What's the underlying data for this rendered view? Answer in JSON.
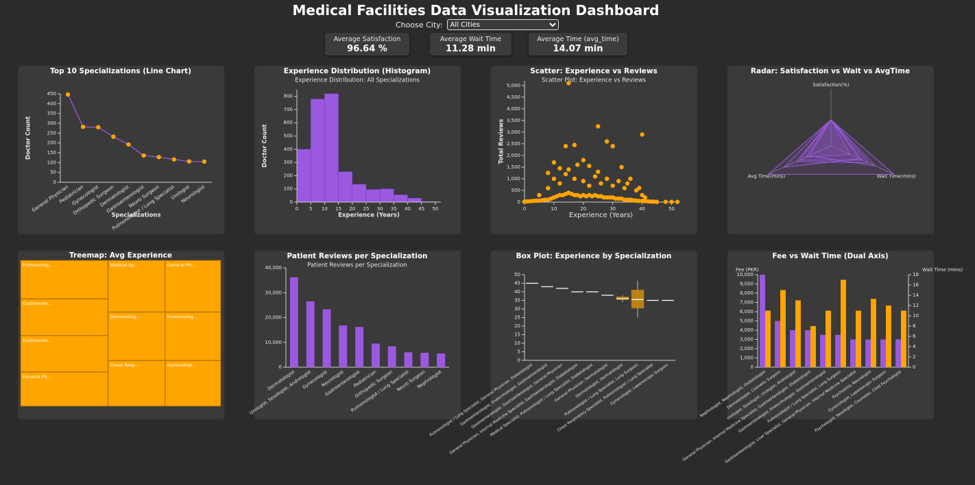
{
  "header": {
    "title": "Medical Facilities Data Visualization Dashboard",
    "city_label": "Choose City:",
    "city_selected": "All Cities"
  },
  "stats": [
    {
      "label": "Average Satisfaction",
      "value": "96.64 %"
    },
    {
      "label": "Average Wait Time",
      "value": "11.28 min"
    },
    {
      "label": "Average Time (avg_time)",
      "value": "14.07 min"
    }
  ],
  "chart_data": [
    {
      "type": "line",
      "title": "Top 10 Specializations (Line Chart)",
      "x_label": "Specializations",
      "y_label": "Doctor Count",
      "categories": [
        "General Physician",
        "Pediatrician",
        "Gynecologist",
        "Orthopedic Surgeon",
        "Dermatologist",
        "Gastroenterologist",
        "Neuro Surgeon",
        "Pulmonologist / Lung Specialist",
        "Urologist",
        "Neurologist"
      ],
      "values": [
        447,
        282,
        280,
        232,
        192,
        136,
        128,
        116,
        106,
        105
      ],
      "line_color": "#9b59e0",
      "marker_color": "#ffa500",
      "ylim": [
        0,
        450
      ],
      "yticks": [
        0,
        50,
        100,
        150,
        200,
        250,
        300,
        350,
        400,
        450
      ]
    },
    {
      "type": "histogram",
      "title": "Experience Distribution (Histogram)",
      "subtitle": "Experience Distribution: All Specializations",
      "x_label": "Experience (Years)",
      "y_label": "Doctor Count",
      "bins": [
        0,
        5,
        10,
        15,
        20,
        25,
        30,
        35,
        40,
        45,
        50
      ],
      "values": [
        400,
        780,
        820,
        230,
        135,
        95,
        100,
        55,
        30,
        5
      ],
      "color": "#9b59e0",
      "xlim": [
        0,
        52
      ],
      "xticks": [
        0,
        5,
        10,
        15,
        20,
        25,
        30,
        35,
        40,
        45,
        50
      ],
      "ylim": [
        0,
        850
      ],
      "yticks": [
        0,
        100,
        200,
        300,
        400,
        500,
        600,
        700,
        800
      ]
    },
    {
      "type": "scatter",
      "title": "Scatter: Experience vs Reviews",
      "subtitle": "Scatter Plot: Experience vs Reviews",
      "x_label": "Experience (Years)",
      "y_label": "Total Reviews",
      "color": "#ffa500",
      "x": [
        0,
        1,
        2,
        3,
        4,
        5,
        6,
        7,
        8,
        9,
        10,
        11,
        12,
        13,
        14,
        15,
        16,
        17,
        18,
        19,
        20,
        21,
        22,
        23,
        24,
        25,
        26,
        27,
        28,
        29,
        30,
        31,
        32,
        33,
        34,
        35,
        36,
        37,
        38,
        39,
        40,
        41,
        42,
        43,
        44,
        45,
        48,
        50,
        52,
        5,
        8,
        10,
        12,
        14,
        15,
        17,
        18,
        20,
        22,
        24,
        25,
        26,
        28,
        30,
        32,
        34,
        35,
        38,
        39,
        40,
        41,
        15,
        25,
        40,
        17,
        28,
        14,
        30,
        10,
        20,
        33,
        12,
        22,
        8,
        36
      ],
      "y": [
        20,
        30,
        40,
        50,
        60,
        60,
        80,
        100,
        100,
        150,
        200,
        250,
        300,
        300,
        350,
        400,
        350,
        300,
        300,
        250,
        300,
        250,
        300,
        250,
        300,
        250,
        250,
        200,
        200,
        200,
        200,
        150,
        150,
        150,
        100,
        100,
        100,
        80,
        60,
        50,
        50,
        40,
        30,
        20,
        20,
        10,
        10,
        10,
        10,
        300,
        600,
        1000,
        800,
        1200,
        1400,
        1000,
        1600,
        900,
        700,
        1100,
        1300,
        800,
        1000,
        700,
        900,
        600,
        800,
        500,
        600,
        300,
        200,
        5100,
        3250,
        2900,
        2450,
        2600,
        2400,
        2400,
        1700,
        1800,
        1500,
        1450,
        1550,
        1250,
        1000
      ],
      "xlim": [
        0,
        52
      ],
      "xticks": [
        0,
        10,
        20,
        30,
        40,
        50
      ],
      "ylim": [
        0,
        5200
      ],
      "yticks": [
        0,
        500,
        {
          "value": 1000,
          "label": "1,000"
        },
        {
          "value": 1500,
          "label": "1,500"
        },
        {
          "value": 2000,
          "label": "2,000"
        },
        {
          "value": 2500,
          "label": "2,500"
        },
        {
          "value": 3000,
          "label": "3,000"
        },
        {
          "value": 3500,
          "label": "3,500"
        },
        {
          "value": 4000,
          "label": "4,000"
        },
        {
          "value": 4500,
          "label": "4,500"
        },
        {
          "value": 5000,
          "label": "5,000"
        }
      ]
    },
    {
      "type": "radar",
      "title": "Radar: Satisfaction vs Wait vs AvgTime",
      "axes": [
        "Satisfaction(%)",
        "Wait Time(mins)",
        "Avg Time(mins)"
      ],
      "rlim": [
        0,
        1
      ],
      "series": [
        {
          "color": "#9b59e0",
          "values": [
            0.46,
            1,
            1
          ]
        },
        {
          "color": "#9b59e0",
          "values": [
            0.46,
            0.6,
            0.55
          ]
        },
        {
          "color": "#9b59e0",
          "values": [
            0.46,
            0.45,
            0.75
          ]
        },
        {
          "color": "#9b59e0",
          "values": [
            0.46,
            0.3,
            0.4
          ]
        },
        {
          "color": "#9b59e0",
          "values": [
            0.46,
            0.7,
            0.35
          ]
        },
        {
          "color": "#9b59e0",
          "values": [
            0.46,
            0.5,
            0.5
          ]
        }
      ]
    },
    {
      "type": "treemap",
      "title": "Treemap: Avg Experience",
      "color": "#ffa500",
      "labels": [
        "Pulmonolog...",
        "Gastroente...",
        "Gastroente...",
        "General Ph...",
        "Medical Sp...",
        "General Ph...",
        "Dermatolog...",
        "Pulmonolog...",
        "Chest Resp...",
        "Gynecologi..."
      ],
      "values": [
        45,
        43,
        42.5,
        40,
        39.5,
        38.5,
        37,
        36,
        35,
        34
      ]
    },
    {
      "type": "bar",
      "title": "Patient Reviews per Specialization",
      "subtitle": "Patient Reviews per Specialization",
      "categories": [
        "Dermatologist",
        "Urologist, Sexologist, Andrologist",
        "Gynecologist",
        "Neurologist",
        "Gastroenterologist",
        "Pediatrician",
        "Orthopedic Surgeon",
        "Pulmonologist / Lung Specialist",
        "Neuro Surgeon",
        "Nephrologist"
      ],
      "values": [
        36200,
        26500,
        23300,
        16800,
        16200,
        9500,
        8400,
        6000,
        5800,
        5500
      ],
      "color": "#9b59e0",
      "ylim": [
        0,
        40000
      ],
      "yticks": [
        0,
        {
          "value": 10000,
          "label": "10,000"
        },
        {
          "value": 20000,
          "label": "20,000"
        },
        {
          "value": 30000,
          "label": "30,000"
        },
        {
          "value": 40000,
          "label": "40,000"
        }
      ]
    },
    {
      "type": "box",
      "title": "Box Plot: Experience by Specialization",
      "color": "#c98a12",
      "median_color": "#ffffff",
      "categories": [
        "Pulmonologist / Lung Specialist, General Physician, Diabetologist",
        "Gastroenterologist, Endocrinologist, Gastroenterologist",
        "Gastroenterologist, Gastroenterologist, General Physician",
        "General Physician, Internal Medicine Specialist, Gastroenterologist, Diabetologist",
        "Medical Specialist, Pulmonologist / Lung Specialist, Diabetologist",
        "General Physician, Dermatologist",
        "Dermatologist, Dermatologist",
        "Pulmonologist / Lung Specialist, Lung Surgeon",
        "Chest Respiratory Specialist, Pulmonologist / Lung Specialist",
        "Gynecologist, Laparoscopic Surgeon"
      ],
      "min": [
        45,
        43,
        42,
        40,
        40,
        38,
        34,
        25,
        35,
        35
      ],
      "q1": [
        45,
        43,
        42,
        40,
        40,
        38,
        35.5,
        30.5,
        35,
        35
      ],
      "median": [
        45,
        43,
        42,
        40,
        40,
        38,
        36,
        35.5,
        35,
        35
      ],
      "q3": [
        45,
        43,
        42,
        40,
        40,
        38,
        37,
        41,
        35,
        35
      ],
      "max": [
        45,
        43,
        42,
        40,
        40,
        38,
        38,
        46.5,
        35,
        35
      ],
      "ylim": [
        0,
        50
      ],
      "yticks": [
        0,
        5,
        10,
        15,
        20,
        25,
        30,
        35,
        40,
        45,
        50
      ]
    },
    {
      "type": "bar",
      "title": "Fee vs Wait Time (Dual Axis)",
      "y_label": "Fee (PKR)",
      "y2_label": "Wait Time (mins)",
      "categories": [
        "Nephrologist, Nephrologist, Diabetologist",
        "Dermatologist, Cosmetic Surgeon",
        "Urologist, Sexologist, Urologist, Andrologist",
        "General Physician, Internal Medicine Specialist, Gastroenterologist, Diabetologist",
        "Gastroenterologist, Endocrinologist, Gastroenterologist",
        "Pulmonologist / Lung Specialist, Lung Surgeon",
        "Gastroenterologist, Liver Specialist, General Physician, Internal Medicine Specialist",
        "Psychiatrist, Neurologist",
        "Gynecologist, Laparoscopic Surgeon",
        "Psychologist, Sexologist, Counselor, Child Psychologist"
      ],
      "series": [
        {
          "color": "#9b59e0",
          "values": [
            10000,
            5000,
            4000,
            4000,
            3500,
            3500,
            3000,
            3000,
            3000,
            3000
          ]
        },
        {
          "color": "#ffa500",
          "axis": "y2",
          "values": [
            11,
            15,
            13,
            8,
            11,
            17,
            11,
            13.3,
            12,
            11
          ]
        }
      ],
      "ylim": [
        0,
        10000
      ],
      "yticks": [
        0,
        {
          "value": 1000,
          "label": "1,000"
        },
        {
          "value": 2000,
          "label": "2,000"
        },
        {
          "value": 3000,
          "label": "3,000"
        },
        {
          "value": 4000,
          "label": "4,000"
        },
        {
          "value": 5000,
          "label": "5,000"
        },
        {
          "value": 6000,
          "label": "6,000"
        },
        {
          "value": 7000,
          "label": "7,000"
        },
        {
          "value": 8000,
          "label": "8,000"
        },
        {
          "value": 9000,
          "label": "9,000"
        },
        {
          "value": 10000,
          "label": "10,000"
        }
      ],
      "y2lim": [
        0,
        18
      ],
      "y2ticks": [
        0,
        2,
        4,
        6,
        8,
        10,
        12,
        14,
        16,
        18
      ]
    }
  ]
}
